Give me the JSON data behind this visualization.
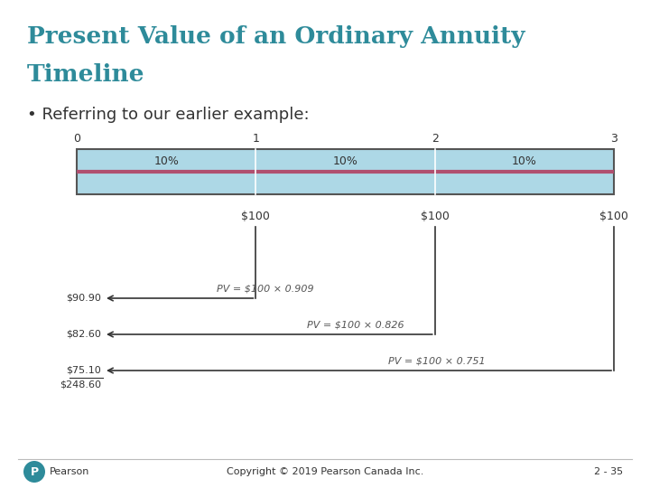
{
  "title_line1": "Present Value of an Ordinary Annuity",
  "title_line2": "Timeline",
  "subtitle": "• Referring to our earlier example:",
  "title_color": "#2E8B9A",
  "background_color": "#FFFFFF",
  "timeline_bg_color": "#ADD8E6",
  "timeline_border_color": "#555555",
  "timeline_red_line_color": "#B05070",
  "pct_labels": [
    "10%",
    "10%",
    "10%"
  ],
  "cashflow_labels": [
    "$100",
    "$100",
    "$100"
  ],
  "pv_formulas": [
    "PV = $100 × 0.909",
    "PV = $100 × 0.826",
    "PV = $100 × 0.751"
  ],
  "pv_dollar_labels": [
    "$90.90",
    "$82.60",
    "$75.10"
  ],
  "pv_total": "$248.60",
  "arrow_color": "#333333",
  "formula_color": "#555555",
  "pv_color": "#333333",
  "footer_text": "Copyright © 2019 Pearson Canada Inc.",
  "slide_number": "2 - 35",
  "font_color_dark": "#333333",
  "pearson_color": "#2E8B9A"
}
